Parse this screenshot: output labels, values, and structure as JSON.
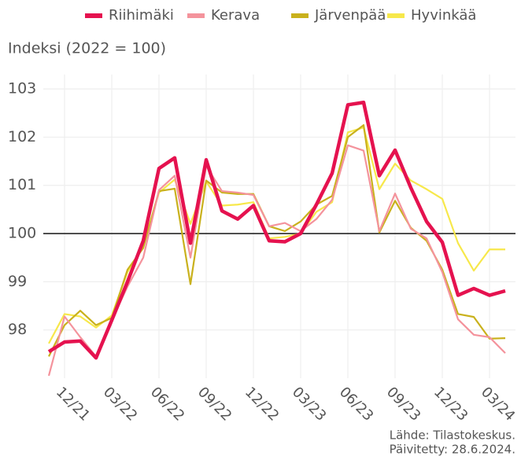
{
  "chart_data": {
    "type": "line",
    "y_label": "Indeksi (2022 = 100)",
    "categories": [
      null,
      "12/21",
      null,
      null,
      "03/22",
      null,
      null,
      "06/22",
      null,
      null,
      "09/22",
      null,
      null,
      "12/22",
      null,
      null,
      "03/23",
      null,
      null,
      "06/23",
      null,
      null,
      "09/23",
      null,
      null,
      "12/23",
      null,
      null,
      "03/24",
      null
    ],
    "series": [
      {
        "name": "Riihimäki",
        "color": "#e5124f",
        "values": [
          97.55,
          97.75,
          97.77,
          97.42,
          98.2,
          99.0,
          99.85,
          101.35,
          101.57,
          99.8,
          101.53,
          100.47,
          100.3,
          100.58,
          99.85,
          99.83,
          100.0,
          100.6,
          101.25,
          102.67,
          102.72,
          101.2,
          101.73,
          100.95,
          100.25,
          99.82,
          98.72,
          98.86,
          98.72,
          98.81
        ]
      },
      {
        "name": "Kerava",
        "color": "#f4939c",
        "values": [
          97.05,
          98.28,
          97.85,
          97.45,
          98.2,
          98.9,
          99.5,
          100.9,
          101.2,
          99.5,
          101.4,
          100.88,
          100.85,
          100.8,
          100.15,
          100.22,
          100.05,
          100.3,
          100.7,
          101.83,
          101.72,
          100.05,
          100.83,
          100.1,
          99.9,
          99.2,
          98.22,
          97.9,
          97.85,
          97.52
        ]
      },
      {
        "name": "Järvenpää",
        "color": "#c9b11c",
        "values": [
          97.45,
          98.1,
          98.4,
          98.1,
          98.25,
          99.25,
          99.7,
          100.88,
          100.93,
          98.95,
          101.1,
          100.85,
          100.82,
          100.82,
          100.15,
          100.05,
          100.25,
          100.6,
          100.78,
          102.0,
          102.25,
          100.02,
          100.68,
          100.12,
          99.85,
          99.25,
          98.33,
          98.27,
          97.82,
          97.83
        ]
      },
      {
        "name": "Hyvinkää",
        "color": "#f7e84b",
        "values": [
          97.72,
          98.33,
          98.28,
          98.05,
          98.3,
          99.2,
          99.75,
          100.85,
          101.12,
          100.2,
          101.08,
          100.58,
          100.6,
          100.65,
          99.9,
          99.93,
          100.0,
          100.45,
          100.65,
          102.1,
          102.2,
          100.92,
          101.45,
          101.1,
          100.92,
          100.72,
          99.8,
          99.23,
          99.67,
          99.67
        ]
      }
    ],
    "ylim": [
      97.0,
      103.3
    ],
    "yticks": [
      98,
      99,
      100,
      101,
      102,
      103
    ],
    "reference_line": 100,
    "grid": true,
    "legend": "top",
    "source": [
      "Lähde: Tilastokeskus.",
      "Päivitetty: 28.6.2024."
    ]
  }
}
